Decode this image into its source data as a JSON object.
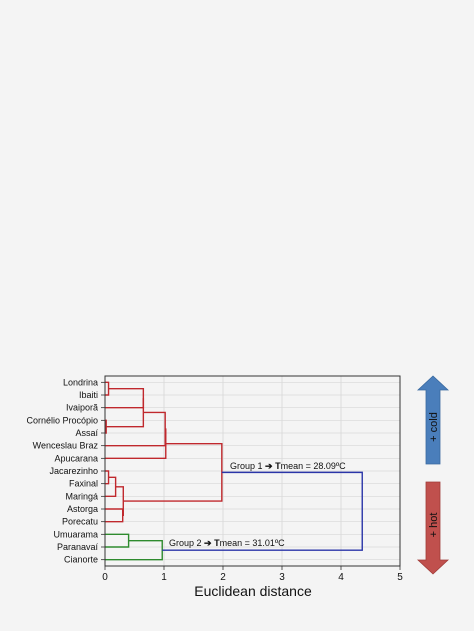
{
  "chart_data": {
    "type": "dendrogram",
    "xlabel": "Euclidean distance",
    "xlim": [
      0,
      5
    ],
    "xticks": [
      0,
      1,
      2,
      3,
      4,
      5
    ],
    "leaves": [
      "Londrina",
      "Ibaiti",
      "Ivaiporã",
      "Cornélio Procópio",
      "Assaí",
      "Wenceslau Braz",
      "Apucarana",
      "Jacarezinho",
      "Faxinal",
      "Maringá",
      "Astorga",
      "Porecatu",
      "Umuarama",
      "Paranavaí",
      "Cianorte"
    ],
    "merges": [
      {
        "a": "leaf:3",
        "b": "leaf:4",
        "height": 0.02,
        "color": "#c0282d"
      },
      {
        "a": "leaf:0",
        "b": "leaf:1",
        "height": 0.06,
        "color": "#c0282d"
      },
      {
        "a": "leaf:7",
        "b": "leaf:8",
        "height": 0.06,
        "color": "#c0282d"
      },
      {
        "a": "node:2",
        "b": "leaf:9",
        "height": 0.18,
        "color": "#c0282d"
      },
      {
        "a": "leaf:10",
        "b": "leaf:11",
        "height": 0.3,
        "color": "#c0282d"
      },
      {
        "a": "node:3",
        "b": "node:4",
        "height": 0.31,
        "color": "#c0282d"
      },
      {
        "a": "leaf:12",
        "b": "leaf:13",
        "height": 0.4,
        "color": "#2e8b2e"
      },
      {
        "a": "node:1",
        "b": "leaf:2",
        "height": 0.65,
        "color": "#c0282d"
      },
      {
        "a": "node:7",
        "b": "node:0",
        "height": 0.65,
        "color": "#c0282d"
      },
      {
        "a": "node:6",
        "b": "leaf:14",
        "height": 0.97,
        "color": "#2e8b2e"
      },
      {
        "a": "node:8",
        "b": "leaf:5",
        "height": 1.02,
        "color": "#c0282d"
      },
      {
        "a": "node:10",
        "b": "leaf:6",
        "height": 1.03,
        "color": "#c0282d"
      },
      {
        "a": "node:11",
        "b": "node:5",
        "height": 1.98,
        "color": "#c0282d"
      },
      {
        "a": "node:12",
        "b": "node:9",
        "height": 4.36,
        "color": "#2a35a8"
      }
    ],
    "annotations": {
      "group1": {
        "prefix": "Group 1 ",
        "arrow": "➔",
        "t": "T",
        "rest": "mean = 28.09ºC"
      },
      "group2": {
        "prefix": "Group 2 ",
        "arrow": "➔",
        "t": "T",
        "rest": "mean = 31.01ºC"
      }
    },
    "side_arrows": {
      "cold": {
        "label": "+ cold",
        "color": "#4a7ebb"
      },
      "hot": {
        "label": "+ hot",
        "color": "#c0504d"
      }
    },
    "grid": true
  }
}
